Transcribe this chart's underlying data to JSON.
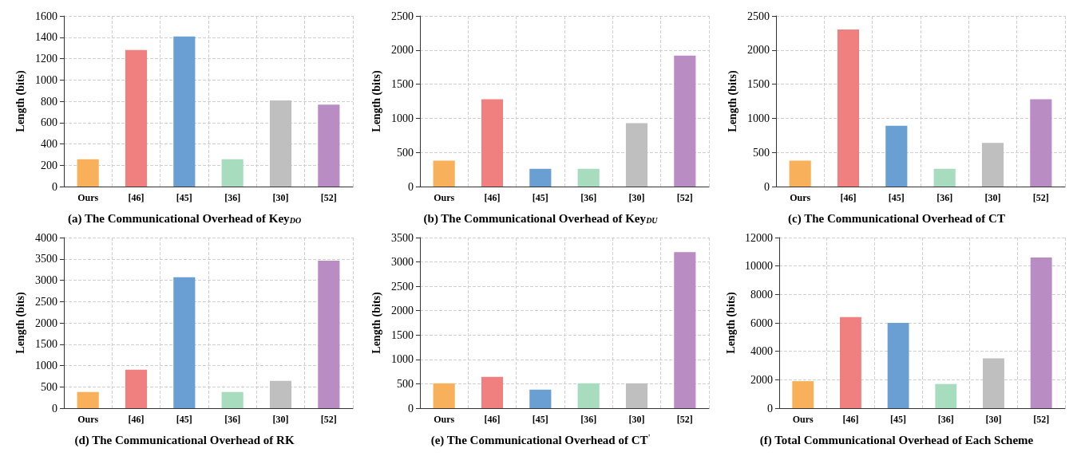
{
  "chart_data": [
    {
      "type": "bar",
      "title": "(a) The Communicational Overhead of Key$_{DO}$",
      "ylabel": "Length (bits)",
      "categories": [
        "Ours",
        "[46]",
        "[45]",
        "[36]",
        "[30]",
        "[52]"
      ],
      "values": [
        256,
        1280,
        1408,
        256,
        808,
        768
      ],
      "colors": [
        "#f9b05a",
        "#f08080",
        "#6a9fd4",
        "#a8dcbf",
        "#bfbfbf",
        "#b98cc4"
      ],
      "ylim": [
        0,
        1600
      ],
      "yticks": [
        0,
        200,
        400,
        600,
        800,
        1000,
        1200,
        1400,
        1600
      ],
      "grid": true
    },
    {
      "type": "bar",
      "title": "(b) The Communicational Overhead of Key$_{DU}$",
      "ylabel": "Length (bits)",
      "categories": [
        "Ours",
        "[46]",
        "[45]",
        "[36]",
        "[30]",
        "[52]"
      ],
      "values": [
        380,
        1280,
        260,
        260,
        930,
        1920
      ],
      "colors": [
        "#f9b05a",
        "#f08080",
        "#6a9fd4",
        "#a8dcbf",
        "#bfbfbf",
        "#b98cc4"
      ],
      "ylim": [
        0,
        2500
      ],
      "yticks": [
        0,
        500,
        1000,
        1500,
        2000,
        2500
      ],
      "grid": true
    },
    {
      "type": "bar",
      "title": "(c) The Communicational Overhead of CT",
      "ylabel": "Length (bits)",
      "categories": [
        "Ours",
        "[46]",
        "[45]",
        "[36]",
        "[30]",
        "[52]"
      ],
      "values": [
        380,
        2300,
        890,
        260,
        640,
        1280
      ],
      "colors": [
        "#f9b05a",
        "#f08080",
        "#6a9fd4",
        "#a8dcbf",
        "#bfbfbf",
        "#b98cc4"
      ],
      "ylim": [
        0,
        2500
      ],
      "yticks": [
        0,
        500,
        1000,
        1500,
        2000,
        2500
      ],
      "grid": true
    },
    {
      "type": "bar",
      "title": "(d) The Communicational Overhead of RK",
      "ylabel": "Length (bits)",
      "categories": [
        "Ours",
        "[46]",
        "[45]",
        "[36]",
        "[30]",
        "[52]"
      ],
      "values": [
        380,
        900,
        3070,
        380,
        640,
        3460
      ],
      "colors": [
        "#f9b05a",
        "#f08080",
        "#6a9fd4",
        "#a8dcbf",
        "#bfbfbf",
        "#b98cc4"
      ],
      "ylim": [
        0,
        4000
      ],
      "yticks": [
        0,
        500,
        1000,
        1500,
        2000,
        2500,
        3000,
        3500,
        4000
      ],
      "grid": true
    },
    {
      "type": "bar",
      "title": "(e) The Communicational Overhead of CT$^{'}$",
      "ylabel": "Length (bits)",
      "categories": [
        "Ours",
        "[46]",
        "[45]",
        "[36]",
        "[30]",
        "[52]"
      ],
      "values": [
        510,
        640,
        380,
        510,
        510,
        3200
      ],
      "colors": [
        "#f9b05a",
        "#f08080",
        "#6a9fd4",
        "#a8dcbf",
        "#bfbfbf",
        "#b98cc4"
      ],
      "ylim": [
        0,
        3500
      ],
      "yticks": [
        0,
        500,
        1000,
        1500,
        2000,
        2500,
        3000,
        3500
      ],
      "grid": true
    },
    {
      "type": "bar",
      "title": "(f) Total Communicational Overhead of Each Scheme",
      "ylabel": "Length (bits)",
      "categories": [
        "Ours",
        "[46]",
        "[45]",
        "[36]",
        "[30]",
        "[52]"
      ],
      "values": [
        1900,
        6400,
        6000,
        1700,
        3500,
        10600
      ],
      "colors": [
        "#f9b05a",
        "#f08080",
        "#6a9fd4",
        "#a8dcbf",
        "#bfbfbf",
        "#b98cc4"
      ],
      "ylim": [
        0,
        12000
      ],
      "yticks": [
        0,
        2000,
        4000,
        6000,
        8000,
        10000,
        12000
      ],
      "grid": true
    }
  ]
}
